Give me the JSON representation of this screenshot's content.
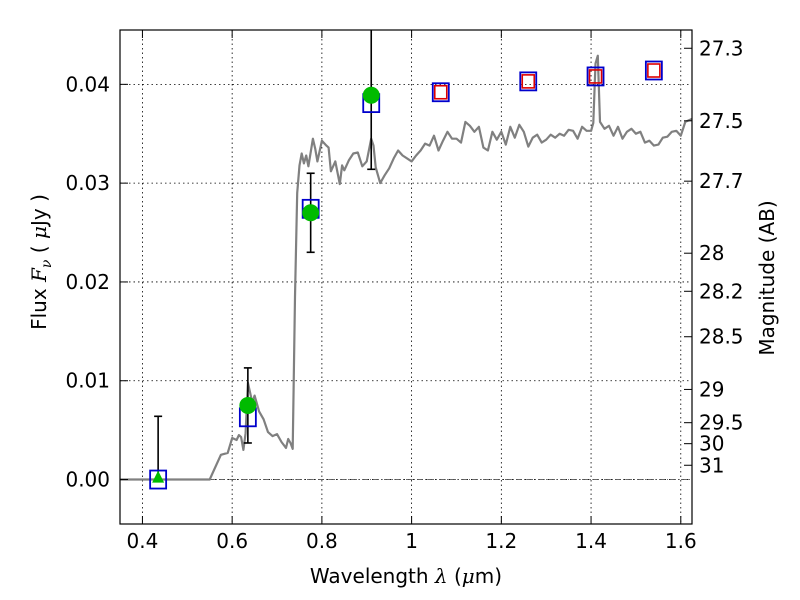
{
  "chart_data": {
    "type": "scatter",
    "title": "",
    "xlabel": {
      "prefix": "Wavelength  ",
      "symbol": "λ",
      "units_open": " (",
      "units_symbol": "μ",
      "units_close": "m)"
    },
    "ylabel": {
      "prefix": "Flux  ",
      "symbol": "F",
      "subscript": "ν",
      "units_open": "  ( ",
      "units_symbol": "μ",
      "units_close": "Jy )"
    },
    "y2label": "Magnitude (AB)",
    "xlim": [
      0.35,
      1.625
    ],
    "ylim": [
      -0.0045,
      0.0455
    ],
    "grid": true,
    "x_ticks": [
      {
        "value": 0.4,
        "label": "0.4"
      },
      {
        "value": 0.6,
        "label": "0.6"
      },
      {
        "value": 0.8,
        "label": "0.8"
      },
      {
        "value": 1.0,
        "label": "1"
      },
      {
        "value": 1.2,
        "label": "1.2"
      },
      {
        "value": 1.4,
        "label": "1.4"
      },
      {
        "value": 1.6,
        "label": "1.6"
      }
    ],
    "y_ticks": [
      {
        "value": 0.0,
        "label": "0.00"
      },
      {
        "value": 0.01,
        "label": "0.01"
      },
      {
        "value": 0.02,
        "label": "0.02"
      },
      {
        "value": 0.03,
        "label": "0.03"
      },
      {
        "value": 0.04,
        "label": "0.04"
      }
    ],
    "mag_ticks": [
      {
        "mag": 27.3,
        "label": "27.3"
      },
      {
        "mag": 27.5,
        "label": "27.5"
      },
      {
        "mag": 27.7,
        "label": "27.7"
      },
      {
        "mag": 28.0,
        "label": "28"
      },
      {
        "mag": 28.2,
        "label": "28.2"
      },
      {
        "mag": 28.5,
        "label": "28.5"
      },
      {
        "mag": 29.0,
        "label": "29"
      },
      {
        "mag": 29.5,
        "label": "29.5"
      },
      {
        "mag": 30.0,
        "label": "30"
      },
      {
        "mag": 31.0,
        "label": "31"
      }
    ],
    "model_spectrum": {
      "color": "#808080",
      "x": [
        0.35,
        0.55,
        0.575,
        0.59,
        0.6,
        0.61,
        0.615,
        0.62,
        0.625,
        0.63,
        0.635,
        0.64,
        0.645,
        0.65,
        0.66,
        0.67,
        0.68,
        0.69,
        0.7,
        0.71,
        0.72,
        0.725,
        0.73,
        0.735,
        0.74,
        0.745,
        0.75,
        0.755,
        0.76,
        0.765,
        0.77,
        0.78,
        0.785,
        0.79,
        0.8,
        0.81,
        0.815,
        0.82,
        0.83,
        0.84,
        0.845,
        0.85,
        0.86,
        0.87,
        0.88,
        0.89,
        0.9,
        0.91,
        0.915,
        0.92,
        0.93,
        0.94,
        0.95,
        0.96,
        0.97,
        0.98,
        0.99,
        1.0,
        1.01,
        1.02,
        1.03,
        1.04,
        1.05,
        1.06,
        1.07,
        1.08,
        1.09,
        1.1,
        1.11,
        1.12,
        1.13,
        1.14,
        1.15,
        1.16,
        1.17,
        1.18,
        1.19,
        1.2,
        1.21,
        1.22,
        1.23,
        1.24,
        1.25,
        1.26,
        1.27,
        1.28,
        1.29,
        1.3,
        1.31,
        1.32,
        1.33,
        1.34,
        1.35,
        1.36,
        1.37,
        1.38,
        1.39,
        1.4,
        1.405,
        1.41,
        1.415,
        1.42,
        1.43,
        1.44,
        1.45,
        1.46,
        1.47,
        1.48,
        1.49,
        1.5,
        1.51,
        1.52,
        1.53,
        1.54,
        1.55,
        1.56,
        1.57,
        1.58,
        1.59,
        1.6,
        1.61,
        1.625
      ],
      "y": [
        0.0,
        0.0,
        0.0025,
        0.0027,
        0.0042,
        0.004,
        0.0045,
        0.0043,
        0.003,
        0.0047,
        0.0098,
        0.0088,
        0.0078,
        0.0085,
        0.0069,
        0.0061,
        0.0048,
        0.0044,
        0.0046,
        0.0038,
        0.0032,
        0.0041,
        0.0037,
        0.0031,
        0.0185,
        0.029,
        0.0318,
        0.033,
        0.032,
        0.0328,
        0.0317,
        0.0345,
        0.0335,
        0.0322,
        0.0343,
        0.0338,
        0.0336,
        0.0312,
        0.0322,
        0.0299,
        0.0318,
        0.0313,
        0.0323,
        0.033,
        0.0331,
        0.0317,
        0.0322,
        0.0345,
        0.0338,
        0.0316,
        0.03,
        0.0308,
        0.0315,
        0.0325,
        0.0333,
        0.0328,
        0.0325,
        0.0322,
        0.0328,
        0.0333,
        0.034,
        0.0338,
        0.0348,
        0.0333,
        0.0343,
        0.0352,
        0.0345,
        0.0345,
        0.0341,
        0.0362,
        0.0358,
        0.0352,
        0.0357,
        0.0336,
        0.0333,
        0.0352,
        0.0344,
        0.0352,
        0.0339,
        0.0357,
        0.0346,
        0.0359,
        0.0352,
        0.0337,
        0.0346,
        0.0349,
        0.0341,
        0.0344,
        0.0349,
        0.0346,
        0.035,
        0.0348,
        0.0354,
        0.0353,
        0.0345,
        0.0357,
        0.0353,
        0.0353,
        0.0361,
        0.0421,
        0.0429,
        0.0362,
        0.0355,
        0.0358,
        0.0348,
        0.0357,
        0.0345,
        0.0352,
        0.0355,
        0.035,
        0.0352,
        0.0341,
        0.0343,
        0.0338,
        0.0339,
        0.0346,
        0.0347,
        0.0352,
        0.0353,
        0.0348,
        0.0362,
        0.0365
      ]
    },
    "model_photometry": {
      "color": "#0000cc",
      "marker": "square",
      "x": [
        0.435,
        0.635,
        0.775,
        0.91,
        1.065,
        1.26,
        1.41,
        1.54
      ],
      "y": [
        0.0,
        0.0063,
        0.0274,
        0.0381,
        0.0392,
        0.0403,
        0.0408,
        0.0414
      ]
    },
    "observed_detections": {
      "color": "#00bb00",
      "marker": "circle",
      "x": [
        0.635,
        0.775,
        0.91
      ],
      "y": [
        0.0075,
        0.027,
        0.0389
      ],
      "yerr": [
        0.0038,
        0.004,
        0.0075
      ]
    },
    "observed_upper_limit": {
      "color": "#00bb00",
      "marker": "triangle",
      "x": [
        0.435
      ],
      "y": [
        0.0002
      ],
      "yerr_upper": [
        0.0062
      ]
    },
    "predicted_points": {
      "color": "#dd0000",
      "marker": "square",
      "x": [
        1.065,
        1.26,
        1.41,
        1.54
      ],
      "y": [
        0.0392,
        0.0403,
        0.0408,
        0.0414
      ]
    }
  }
}
